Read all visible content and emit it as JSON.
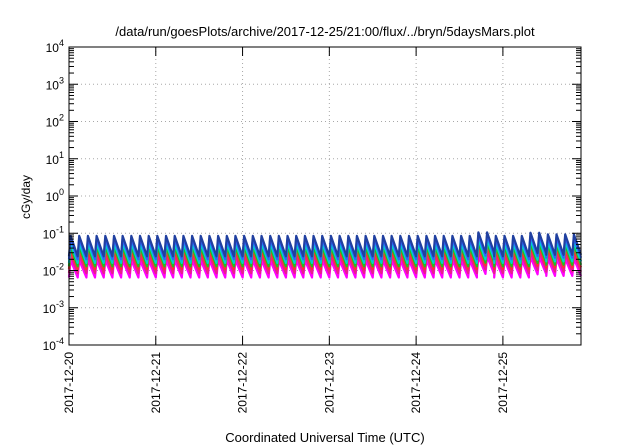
{
  "chart_data": {
    "type": "line",
    "title": "/data/run/goesPlots/archive/2017-12-25/21:00/flux/../bryn/5daysMars.plot",
    "xlabel": "Coordinated Universal Time (UTC)",
    "ylabel": "cGy/day",
    "yscale": "log",
    "ylim": [
      0.0001,
      10000
    ],
    "xlim": [
      0,
      5.9
    ],
    "x_unit": "days from 2017-12-20 00:00 UTC",
    "y_ticks": [
      {
        "base": "10",
        "exp": "-4",
        "value": 0.0001
      },
      {
        "base": "10",
        "exp": "-3",
        "value": 0.001
      },
      {
        "base": "10",
        "exp": "-2",
        "value": 0.01
      },
      {
        "base": "10",
        "exp": "-1",
        "value": 0.1
      },
      {
        "base": "10",
        "exp": "0",
        "value": 1
      },
      {
        "base": "10",
        "exp": "1",
        "value": 10
      },
      {
        "base": "10",
        "exp": "2",
        "value": 100
      },
      {
        "base": "10",
        "exp": "3",
        "value": 1000
      },
      {
        "base": "10",
        "exp": "4",
        "value": 10000
      }
    ],
    "x_ticks": [
      {
        "label": "2017-12-20",
        "value": 0
      },
      {
        "label": "2017-12-21",
        "value": 1
      },
      {
        "label": "2017-12-22",
        "value": 2
      },
      {
        "label": "2017-12-23",
        "value": 3
      },
      {
        "label": "2017-12-24",
        "value": 4
      },
      {
        "label": "2017-12-25",
        "value": 5
      }
    ],
    "grid": true,
    "pattern": "sawtooth",
    "period_days": 0.1,
    "series": [
      {
        "color": "#ff00ff",
        "low": 0.0065,
        "high": 0.019
      },
      {
        "color": "#e8208a",
        "low": 0.0085,
        "high": 0.026
      },
      {
        "color": "#ff3030",
        "low": 0.011,
        "high": 0.034
      },
      {
        "color": "#20c020",
        "low": 0.013,
        "high": 0.044
      },
      {
        "color": "#00d0d0",
        "low": 0.016,
        "high": 0.055
      },
      {
        "color": "#3060ff",
        "low": 0.02,
        "high": 0.072
      },
      {
        "color": "#2040a0",
        "low": 0.024,
        "high": 0.085
      }
    ]
  }
}
